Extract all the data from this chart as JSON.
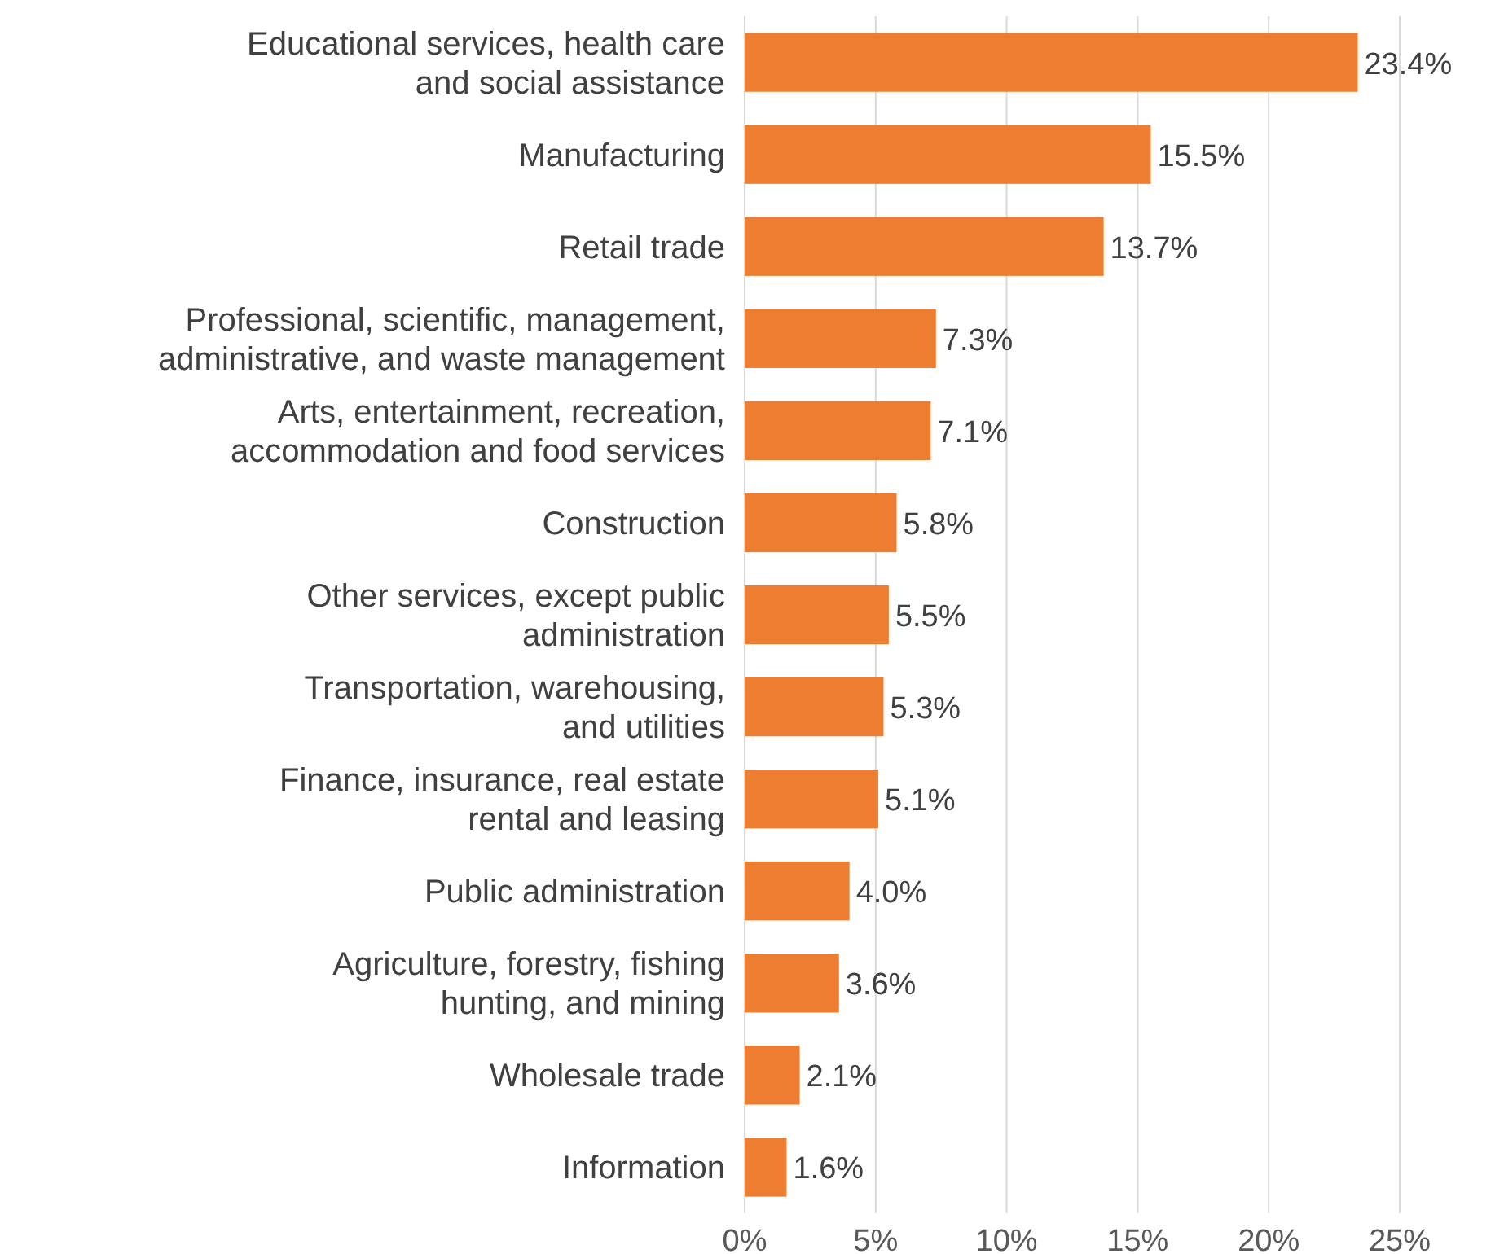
{
  "chart_data": {
    "type": "bar",
    "orientation": "horizontal",
    "categories": [
      "Educational services, health care\nand social assistance",
      "Manufacturing",
      "Retail trade",
      "Professional, scientific, management,\nadministrative, and waste management",
      "Arts, entertainment, recreation,\naccommodation and food services",
      "Construction",
      "Other services, except public\nadministration",
      "Transportation, warehousing,\nand utilities",
      "Finance, insurance, real estate\nrental and leasing",
      "Public administration",
      "Agriculture, forestry, fishing\nhunting, and mining",
      "Wholesale trade",
      "Information"
    ],
    "values": [
      23.4,
      15.5,
      13.7,
      7.3,
      7.1,
      5.8,
      5.5,
      5.3,
      5.1,
      4.0,
      3.6,
      2.1,
      1.6
    ],
    "value_labels": [
      "23.4%",
      "15.5%",
      "13.7%",
      "7.3%",
      "7.1%",
      "5.8%",
      "5.5%",
      "5.3%",
      "5.1%",
      "4.0%",
      "3.6%",
      "2.1%",
      "1.6%"
    ],
    "color": "#ed7d31",
    "xlim": [
      0,
      25
    ],
    "xticks": [
      {
        "value": 0,
        "label": "0%"
      },
      {
        "value": 5,
        "label": "5%"
      },
      {
        "value": 10,
        "label": "10%"
      },
      {
        "value": 15,
        "label": "15%"
      },
      {
        "value": 20,
        "label": "20%"
      },
      {
        "value": 25,
        "label": "25%"
      }
    ],
    "grid": "x"
  }
}
